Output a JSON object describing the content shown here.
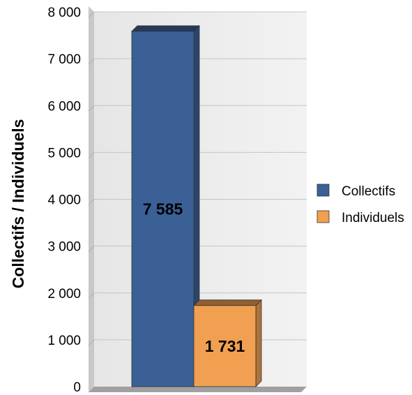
{
  "chart_data": {
    "type": "bar",
    "categories": [
      "Collectifs",
      "Individuels"
    ],
    "series": [
      {
        "name": "Collectifs",
        "values": [
          7585,
          null
        ],
        "color": "#3a6096"
      },
      {
        "name": "Individuels",
        "values": [
          null,
          1731
        ],
        "color": "#f0a050"
      }
    ],
    "values": [
      7585,
      1731
    ],
    "data_labels": [
      "7 585",
      "1 731"
    ],
    "ylabel": "Collectifs / Individuels",
    "xlabel": "",
    "ylim": [
      0,
      8000
    ],
    "yticks": [
      0,
      1000,
      2000,
      3000,
      4000,
      5000,
      6000,
      7000,
      8000
    ],
    "ytick_labels": [
      "0",
      "1 000",
      "2 000",
      "3 000",
      "4 000",
      "5 000",
      "6 000",
      "7 000",
      "8 000"
    ],
    "grid": true,
    "legend_position": "right",
    "style": "3d"
  }
}
